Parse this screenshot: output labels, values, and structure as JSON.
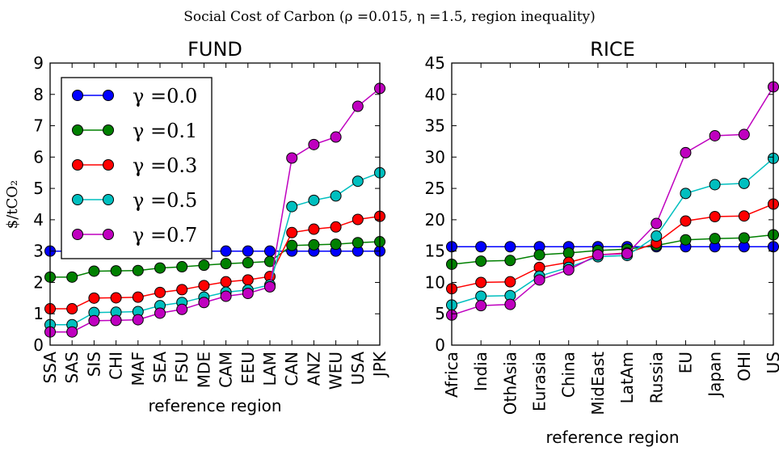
{
  "figure": {
    "suptitle": "Social Cost of Carbon (ρ =0.015, η =1.5, region inequality)",
    "ylabel": "$/tCO₂"
  },
  "chart_data": [
    {
      "type": "line",
      "title": "FUND",
      "xlabel": "reference region",
      "ylabel": "$/tCO₂",
      "categories": [
        "SSA",
        "SAS",
        "SIS",
        "CHI",
        "MAF",
        "SEA",
        "FSU",
        "MDE",
        "CAM",
        "EEU",
        "LAM",
        "CAN",
        "ANZ",
        "WEU",
        "USA",
        "JPK"
      ],
      "ylim": [
        0,
        9
      ],
      "yticks": [
        0,
        1,
        2,
        3,
        4,
        5,
        6,
        7,
        8,
        9
      ],
      "legend_position": "top-left",
      "grid": false,
      "series": [
        {
          "name": "γ =0.0",
          "color": "#0000ff",
          "values": [
            3.0,
            3.0,
            3.0,
            3.0,
            3.0,
            3.0,
            3.0,
            3.0,
            3.0,
            3.0,
            3.0,
            3.0,
            3.0,
            3.0,
            3.0,
            3.0
          ]
        },
        {
          "name": "γ =0.1",
          "color": "#008000",
          "values": [
            2.17,
            2.17,
            2.36,
            2.37,
            2.38,
            2.46,
            2.5,
            2.55,
            2.6,
            2.63,
            2.67,
            3.18,
            3.2,
            3.22,
            3.27,
            3.3
          ]
        },
        {
          "name": "γ =0.3",
          "color": "#ff0000",
          "values": [
            1.16,
            1.16,
            1.5,
            1.51,
            1.53,
            1.68,
            1.77,
            1.9,
            2.02,
            2.08,
            2.19,
            3.59,
            3.7,
            3.77,
            4.01,
            4.11
          ]
        },
        {
          "name": "γ =0.5",
          "color": "#00bfbf",
          "values": [
            0.65,
            0.65,
            1.04,
            1.05,
            1.07,
            1.26,
            1.36,
            1.53,
            1.69,
            1.76,
            1.92,
            4.42,
            4.62,
            4.76,
            5.23,
            5.5
          ]
        },
        {
          "name": "γ =0.7",
          "color": "#bf00bf",
          "values": [
            0.42,
            0.42,
            0.78,
            0.79,
            0.81,
            1.02,
            1.14,
            1.36,
            1.56,
            1.65,
            1.86,
            5.97,
            6.4,
            6.64,
            7.62,
            8.19
          ]
        }
      ]
    },
    {
      "type": "line",
      "title": "RICE",
      "xlabel": "reference region",
      "categories": [
        "Africa",
        "India",
        "OthAsia",
        "Eurasia",
        "China",
        "MidEast",
        "LatAm",
        "Russia",
        "EU",
        "Japan",
        "OHI",
        "US"
      ],
      "ylim": [
        0,
        45
      ],
      "yticks": [
        0,
        5,
        10,
        15,
        20,
        25,
        30,
        35,
        40,
        45
      ],
      "grid": false,
      "series": [
        {
          "name": "γ =0.0",
          "color": "#0000ff",
          "values": [
            15.7,
            15.7,
            15.7,
            15.7,
            15.7,
            15.7,
            15.7,
            15.7,
            15.7,
            15.7,
            15.7,
            15.7
          ]
        },
        {
          "name": "γ =0.1",
          "color": "#008000",
          "values": [
            12.9,
            13.4,
            13.5,
            14.4,
            14.7,
            15.1,
            15.3,
            15.9,
            16.8,
            17.0,
            17.1,
            17.6
          ]
        },
        {
          "name": "γ =0.3",
          "color": "#ff0000",
          "values": [
            9.0,
            10.0,
            10.1,
            12.4,
            13.2,
            14.4,
            14.7,
            16.3,
            19.8,
            20.5,
            20.6,
            22.5
          ]
        },
        {
          "name": "γ =0.5",
          "color": "#00bfbf",
          "values": [
            6.4,
            7.8,
            7.9,
            11.0,
            12.4,
            14.1,
            14.3,
            17.4,
            24.2,
            25.6,
            25.8,
            29.8
          ]
        },
        {
          "name": "γ =0.7",
          "color": "#bf00bf",
          "values": [
            4.8,
            6.3,
            6.5,
            10.4,
            12.0,
            14.4,
            14.6,
            19.4,
            30.7,
            33.4,
            33.6,
            41.2
          ]
        }
      ]
    }
  ]
}
